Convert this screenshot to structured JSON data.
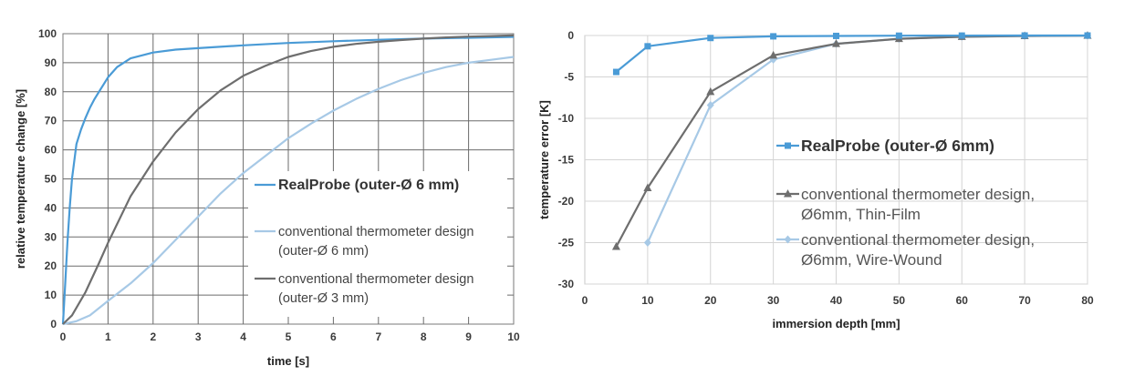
{
  "chart_data": [
    {
      "type": "line",
      "title": "",
      "xlabel": "time [s]",
      "ylabel": "relative temperature change [%]",
      "xlim": [
        0,
        10
      ],
      "ylim": [
        0,
        100
      ],
      "x_ticks": [
        "0",
        "1",
        "2",
        "3",
        "4",
        "5",
        "6",
        "7",
        "8",
        "9",
        "10"
      ],
      "y_ticks": [
        "0",
        "10",
        "20",
        "30",
        "40",
        "50",
        "60",
        "70",
        "80",
        "90",
        "100"
      ],
      "grid": true,
      "legend_position": "center-right",
      "series": [
        {
          "name": "RealProbe (outer-Ø 6 mm)",
          "color": "#4a9bd6",
          "x": [
            0,
            0.05,
            0.1,
            0.15,
            0.2,
            0.3,
            0.4,
            0.5,
            0.6,
            0.7,
            0.8,
            0.9,
            1.0,
            1.2,
            1.5,
            2.0,
            2.5,
            3.0,
            4.0,
            5.0,
            6.0,
            7.0,
            8.0,
            9.0,
            10.0
          ],
          "y": [
            0,
            14,
            28,
            40,
            50,
            62,
            67,
            71,
            74.5,
            77.5,
            80,
            82.5,
            85,
            88.5,
            91.5,
            93.5,
            94.5,
            95,
            96,
            96.8,
            97.4,
            97.9,
            98.3,
            98.6,
            98.9
          ]
        },
        {
          "name": "conventional thermometer design (outer-Ø 6 mm)",
          "color": "#a7c9e6",
          "x": [
            0,
            0.3,
            0.6,
            1.0,
            1.5,
            2.0,
            2.5,
            3.0,
            3.5,
            4.0,
            4.5,
            5.0,
            5.5,
            6.0,
            6.5,
            7.0,
            7.5,
            8.0,
            8.5,
            9.0,
            9.5,
            10.0
          ],
          "y": [
            0,
            1,
            3,
            8,
            14,
            21,
            29,
            37,
            45,
            52,
            58,
            64,
            69,
            73.5,
            77.5,
            81,
            84,
            86.5,
            88.5,
            90,
            91,
            92
          ]
        },
        {
          "name": "conventional thermometer design (outer-Ø 3 mm)",
          "color": "#6e6e6e",
          "x": [
            0,
            0.2,
            0.5,
            0.8,
            1.0,
            1.5,
            2.0,
            2.5,
            3.0,
            3.5,
            4.0,
            4.5,
            5.0,
            5.5,
            6.0,
            6.5,
            7.0,
            7.5,
            8.0,
            8.5,
            9.0,
            9.5,
            10.0
          ],
          "y": [
            0,
            3,
            11,
            21,
            28,
            44,
            56,
            66,
            74,
            80.5,
            85.5,
            89,
            92,
            94,
            95.5,
            96.5,
            97.2,
            97.8,
            98.3,
            98.7,
            99.0,
            99.2,
            99.4
          ]
        }
      ]
    },
    {
      "type": "line",
      "title": "",
      "xlabel": "immersion depth [mm]",
      "ylabel": "temperature error [K]",
      "xlim": [
        0,
        80
      ],
      "ylim": [
        -30,
        0
      ],
      "x_ticks": [
        "0",
        "10",
        "20",
        "30",
        "40",
        "50",
        "60",
        "70",
        "80"
      ],
      "y_ticks": [
        "0",
        "-5",
        "-10",
        "-15",
        "-20",
        "-25",
        "-30"
      ],
      "grid": true,
      "legend_position": "center-right",
      "series": [
        {
          "name": "RealProbe (outer-Ø 6mm)",
          "color": "#4a9bd6",
          "marker": "square",
          "x": [
            5,
            10,
            20,
            30,
            40,
            50,
            60,
            70,
            80
          ],
          "y": [
            -4.4,
            -1.3,
            -0.3,
            -0.1,
            -0.05,
            -0.02,
            -0.01,
            0,
            0
          ]
        },
        {
          "name": "conventional thermometer design, Ø6mm, Thin-Film",
          "color": "#6e6e6e",
          "marker": "triangle",
          "x": [
            5,
            10,
            20,
            30,
            40,
            50,
            60,
            70,
            80
          ],
          "y": [
            -25.5,
            -18.4,
            -6.8,
            -2.4,
            -1.0,
            -0.4,
            -0.15,
            -0.05,
            -0.02
          ]
        },
        {
          "name": "conventional thermometer design, Ø6mm, Wire-Wound",
          "color": "#a7c9e6",
          "marker": "diamond",
          "x": [
            10,
            20,
            30,
            40,
            50,
            60,
            70,
            80
          ],
          "y": [
            -25.0,
            -8.4,
            -2.9,
            -1.0,
            -0.4,
            -0.15,
            -0.05,
            -0.02
          ]
        }
      ]
    }
  ]
}
